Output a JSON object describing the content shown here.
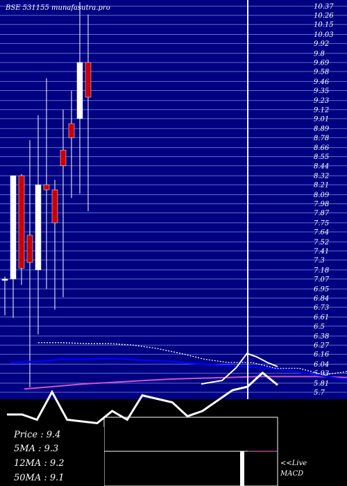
{
  "header": {
    "title": "BSE 531155 munafasutra.pro"
  },
  "info": {
    "price": "Price   : 9.4",
    "ma5": "5MA : 9.3",
    "ma12": "12MA : 9.2",
    "ma50": "50MA : 9.1"
  },
  "macd": {
    "live_label": "<<Live",
    "label": "MACD"
  },
  "chart_data": {
    "type": "candlestick",
    "title": "BSE 531155 munafasutra.pro",
    "y_ticks": [
      10.37,
      10.26,
      10.15,
      10.03,
      9.92,
      9.8,
      9.69,
      9.58,
      9.46,
      9.35,
      9.23,
      9.12,
      9.01,
      8.89,
      8.78,
      8.66,
      8.55,
      8.44,
      8.32,
      8.21,
      8.09,
      7.98,
      7.87,
      7.75,
      7.64,
      7.52,
      7.41,
      7.3,
      7.18,
      7.07,
      6.95,
      6.84,
      6.73,
      6.61,
      6.5,
      6.38,
      6.27,
      6.16,
      6.04,
      5.93,
      5.81,
      5.7
    ],
    "ylim": [
      5.7,
      10.37
    ],
    "candles": [
      {
        "open": 7.07,
        "close": 7.07,
        "high": 7.1,
        "low": 6.63,
        "color": "white"
      },
      {
        "open": 7.07,
        "close": 8.32,
        "high": 8.32,
        "low": 6.6,
        "color": "white"
      },
      {
        "open": 8.32,
        "close": 7.2,
        "high": 8.34,
        "low": 7.0,
        "color": "red"
      },
      {
        "open": 7.6,
        "close": 7.27,
        "high": 8.75,
        "low": 5.76,
        "color": "red"
      },
      {
        "open": 7.18,
        "close": 8.21,
        "high": 9.05,
        "low": 6.4,
        "color": "white"
      },
      {
        "open": 8.21,
        "close": 8.15,
        "high": 9.5,
        "low": 6.95,
        "color": "red"
      },
      {
        "open": 8.15,
        "close": 7.75,
        "high": 8.27,
        "low": 6.7,
        "color": "red"
      },
      {
        "open": 8.44,
        "close": 8.63,
        "high": 9.12,
        "low": 6.85,
        "color": "red"
      },
      {
        "open": 8.78,
        "close": 8.95,
        "high": 9.35,
        "low": 8.05,
        "color": "red"
      },
      {
        "open": 9.01,
        "close": 9.69,
        "high": 10.42,
        "low": 8.1,
        "color": "white"
      },
      {
        "open": 9.69,
        "close": 9.27,
        "high": 10.27,
        "low": 7.89,
        "color": "red"
      }
    ],
    "ma_white_dotted": [
      6.3,
      6.3,
      6.29,
      6.29,
      6.27,
      6.23,
      6.17,
      6.1,
      6.06,
      6.06,
      5.99,
      5.99,
      5.91,
      5.95
    ],
    "ma_blue": [
      6.06,
      6.07,
      6.1,
      6.1,
      6.11,
      6.09,
      6.08,
      6.05,
      6.03,
      6.01,
      5.99,
      5.95,
      5.9,
      5.85
    ],
    "ma_magenta": [
      5.74,
      5.77,
      5.8,
      5.82,
      5.84,
      5.86,
      5.87,
      5.88,
      5.89,
      5.89,
      5.89,
      5.88
    ],
    "macd_line": [
      0.3,
      0.3,
      0.15,
      0.95,
      0.15,
      0.1,
      0.05,
      0.4,
      0.15,
      0.85,
      0.75,
      0.65,
      0.25,
      0.4,
      0.7,
      1.0,
      1.1,
      1.5,
      1.15
    ]
  }
}
